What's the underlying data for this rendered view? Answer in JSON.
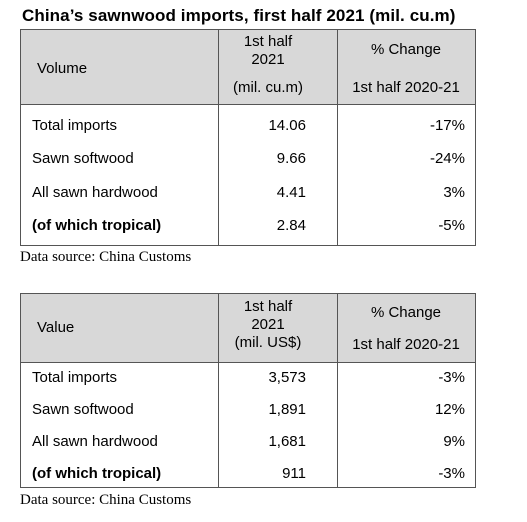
{
  "title": "China’s sawnwood imports, first half 2021 (mil. cu.m)",
  "volume_table": {
    "row_label": "Volume",
    "col2": [
      "1st half",
      "2021",
      "(mil. cu.m)"
    ],
    "col3": [
      "% Change",
      "1st half 2020-21"
    ],
    "rows": [
      {
        "name": "Total imports",
        "value": "14.06",
        "change": "-17%"
      },
      {
        "name": "Sawn softwood",
        "value": "9.66",
        "change": "-24%"
      },
      {
        "name": "All sawn hardwood",
        "value": "4.41",
        "change": "3%"
      },
      {
        "name": "(of which tropical)",
        "value": "2.84",
        "change": "-5%"
      }
    ],
    "source": "Data source: China Customs"
  },
  "value_table": {
    "row_label": "Value",
    "col2": [
      "1st half",
      "2021",
      "(mil. US$)"
    ],
    "col3": [
      "% Change",
      "1st half 2020-21"
    ],
    "rows": [
      {
        "name": "Total imports",
        "value": "3,573",
        "change": "-3%"
      },
      {
        "name": "Sawn softwood",
        "value": "1,891",
        "change": "12%"
      },
      {
        "name": "All sawn hardwood",
        "value": "1,681",
        "change": "9%"
      },
      {
        "name": "(of which tropical)",
        "value": "911",
        "change": "-3%"
      }
    ],
    "source": "Data source: China Customs"
  },
  "colors": {
    "header_bg": "#d8d8d8",
    "border": "#555555"
  }
}
